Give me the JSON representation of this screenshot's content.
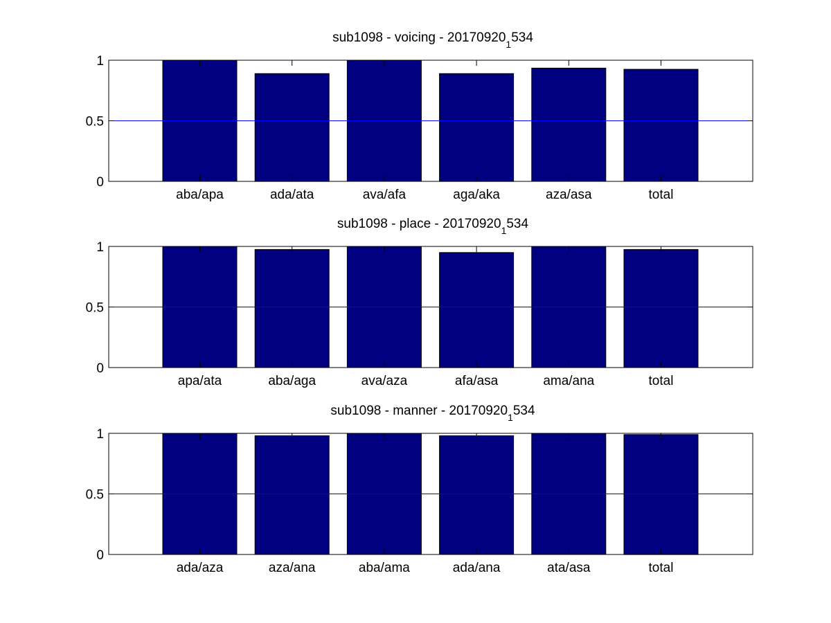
{
  "colors": {
    "bar": "#000080",
    "reference_line": "#0000ff",
    "axes": "#000000",
    "background": "#ffffff"
  },
  "chart_data": [
    {
      "type": "bar",
      "title": {
        "main": "sub1098 - voicing - 20170920",
        "subscript": "1",
        "suffix": "534"
      },
      "categories": [
        "aba/apa",
        "ada/ata",
        "ava/afa",
        "aga/aka",
        "aza/asa",
        "total"
      ],
      "values": [
        1.0,
        0.89,
        1.0,
        0.89,
        0.935,
        0.925
      ],
      "ylim": [
        0,
        1
      ],
      "yticks": [
        0,
        0.5,
        1
      ],
      "ytick_labels": [
        "0",
        "0.5",
        "1"
      ],
      "reference_line": 0.5,
      "xlabel": "",
      "ylabel": "",
      "grid": false,
      "legend": "none"
    },
    {
      "type": "bar",
      "title": {
        "main": "sub1098 - place - 20170920",
        "subscript": "1",
        "suffix": "534"
      },
      "categories": [
        "apa/ata",
        "aba/aga",
        "ava/aza",
        "afa/asa",
        "ama/ana",
        "total"
      ],
      "values": [
        1.0,
        0.975,
        1.0,
        0.95,
        1.0,
        0.975
      ],
      "ylim": [
        0,
        1
      ],
      "yticks": [
        0,
        0.5,
        1
      ],
      "ytick_labels": [
        "0",
        "0.5",
        "1"
      ],
      "reference_line": 0.5,
      "xlabel": "",
      "ylabel": "",
      "grid": false,
      "legend": "none"
    },
    {
      "type": "bar",
      "title": {
        "main": "sub1098 - manner - 20170920",
        "subscript": "1",
        "suffix": "534"
      },
      "categories": [
        "ada/aza",
        "aza/ana",
        "aba/ama",
        "ada/ana",
        "ata/asa",
        "total"
      ],
      "values": [
        1.0,
        0.98,
        1.0,
        0.98,
        1.0,
        0.99
      ],
      "ylim": [
        0,
        1
      ],
      "yticks": [
        0,
        0.5,
        1
      ],
      "ytick_labels": [
        "0",
        "0.5",
        "1"
      ],
      "reference_line": 0.5,
      "xlabel": "",
      "ylabel": "",
      "grid": false,
      "legend": "none"
    }
  ]
}
